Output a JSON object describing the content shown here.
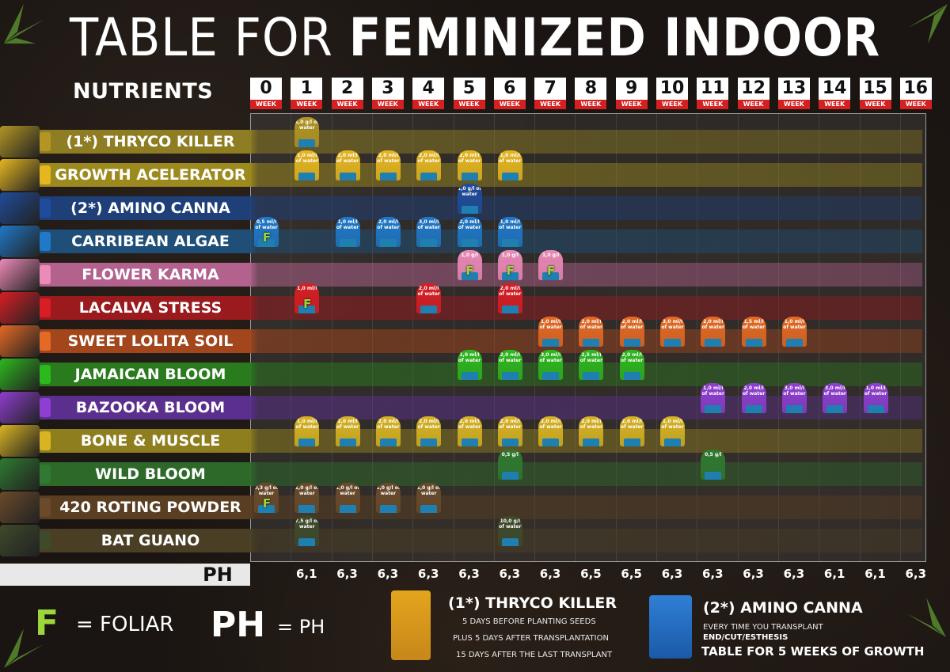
{
  "title": {
    "thin": "TABLE FOR ",
    "bold": "FEMINIZED INDOOR"
  },
  "nutrients_header": "NUTRIENTS",
  "week_label": "WEEK",
  "weeks": [
    "0",
    "1",
    "2",
    "3",
    "4",
    "5",
    "6",
    "7",
    "8",
    "9",
    "10",
    "11",
    "12",
    "13",
    "14",
    "15",
    "16"
  ],
  "nutrients": [
    {
      "label": "(1*) THRYCO KILLER",
      "color": "#8e7d22",
      "bottle": "#b29524",
      "doses": [
        {
          "w": 1,
          "t": "1,0 g/l of water"
        }
      ]
    },
    {
      "label": "GROWTH ACELERATOR",
      "color": "#9c8a1e",
      "bottle": "#e6b620",
      "doses": [
        {
          "w": 1,
          "t": "1,0 ml/l of water"
        },
        {
          "w": 2,
          "t": "2,0 ml/l of water"
        },
        {
          "w": 3,
          "t": "2,0 ml/l of water"
        },
        {
          "w": 4,
          "t": "2,0 ml/l of water"
        },
        {
          "w": 5,
          "t": "2,0 ml/l of water"
        },
        {
          "w": 6,
          "t": "1,0 ml/l of water"
        }
      ]
    },
    {
      "label": "(2*) AMINO CANNA",
      "color": "#1e3f78",
      "bottle": "#1f4c9a",
      "doses": [
        {
          "w": 5,
          "t": "1,0 g/l of water"
        }
      ]
    },
    {
      "label": "CARRIBEAN ALGAE",
      "color": "#1f4f78",
      "bottle": "#1f78c8",
      "doses": [
        {
          "w": 0,
          "t": "0,5 ml/l of water",
          "f": "F"
        },
        {
          "w": 2,
          "t": "1,0 ml/l of water"
        },
        {
          "w": 3,
          "t": "2,0 ml/l of water"
        },
        {
          "w": 4,
          "t": "3,0 ml/l of water"
        },
        {
          "w": 5,
          "t": "2,0 ml/l of water"
        },
        {
          "w": 6,
          "t": "1,0 ml/l of water"
        }
      ]
    },
    {
      "label": "FLOWER KARMA",
      "color": "#b3628e",
      "bottle": "#ec8ab8",
      "doses": [
        {
          "w": 5,
          "t": "1,0 g/l",
          "f": "F"
        },
        {
          "w": 6,
          "t": "1,0 g/l",
          "f": "F"
        },
        {
          "w": 7,
          "t": "1,0 g/l",
          "f": "F"
        }
      ]
    },
    {
      "label": "LACALVA STRESS",
      "color": "#9a1a1e",
      "bottle": "#d81e24",
      "doses": [
        {
          "w": 1,
          "t": "1,0 ml/l",
          "f": "F"
        },
        {
          "w": 4,
          "t": "2,0 ml/l of water"
        },
        {
          "w": 6,
          "t": "2,0 ml/l of water"
        }
      ]
    },
    {
      "label": "SWEET LOLITA SOIL",
      "color": "#a3461c",
      "bottle": "#e36a24",
      "doses": [
        {
          "w": 7,
          "t": "1,0 ml/l of water"
        },
        {
          "w": 8,
          "t": "2,0 ml/l of water"
        },
        {
          "w": 9,
          "t": "2,0 ml/l of water"
        },
        {
          "w": 10,
          "t": "3,0 ml/l of water"
        },
        {
          "w": 11,
          "t": "2,0 ml/l of water"
        },
        {
          "w": 12,
          "t": "1,5 ml/l of water"
        },
        {
          "w": 13,
          "t": "1,0 ml/l of water"
        }
      ]
    },
    {
      "label": "JAMAICAN BLOOM",
      "color": "#2a7a1e",
      "bottle": "#2db81e",
      "doses": [
        {
          "w": 5,
          "t": "1,0 ml/l of water"
        },
        {
          "w": 6,
          "t": "2,0 ml/l of water"
        },
        {
          "w": 7,
          "t": "3,0 ml/l of water"
        },
        {
          "w": 8,
          "t": "2,5 ml/l of water"
        },
        {
          "w": 9,
          "t": "2,0 ml/l of water"
        }
      ]
    },
    {
      "label": "BAZOOKA BLOOM",
      "color": "#5a2f8e",
      "bottle": "#8e3ed0",
      "doses": [
        {
          "w": 11,
          "t": "1,0 ml/l of water"
        },
        {
          "w": 12,
          "t": "2,0 ml/l of water"
        },
        {
          "w": 13,
          "t": "3,0 ml/l of water"
        },
        {
          "w": 14,
          "t": "3,0 ml/l of water"
        },
        {
          "w": 15,
          "t": "1,0 ml/l of water"
        }
      ]
    },
    {
      "label": "BONE & MUSCLE",
      "color": "#8e7e1e",
      "bottle": "#d8b322",
      "doses": [
        {
          "w": 1,
          "t": "1,0 ml/l of water"
        },
        {
          "w": 2,
          "t": "2,0 ml/l of water"
        },
        {
          "w": 3,
          "t": "2,0 ml/l of water"
        },
        {
          "w": 4,
          "t": "2,0 ml/l of water"
        },
        {
          "w": 5,
          "t": "2,0 ml/l of water"
        },
        {
          "w": 6,
          "t": "2,0 ml/l of water"
        },
        {
          "w": 7,
          "t": "2,0 ml/l of water"
        },
        {
          "w": 8,
          "t": "2,0 ml/l of water"
        },
        {
          "w": 9,
          "t": "2,0 ml/l of water"
        },
        {
          "w": 10,
          "t": "1,0 ml/l of water"
        }
      ]
    },
    {
      "label": "WILD BLOOM",
      "color": "#2d6a2a",
      "bottle": "#2f7a30",
      "doses": [
        {
          "w": 6,
          "t": "0,5 g/l"
        },
        {
          "w": 11,
          "t": "0,5 g/l"
        }
      ]
    },
    {
      "label": "420 ROTING POWDER",
      "color": "#5a3e22",
      "bottle": "#6a4a2a",
      "doses": [
        {
          "w": 0,
          "t": "0,3 g/l of water",
          "f": "F"
        },
        {
          "w": 1,
          "t": "1,0 g/l of water"
        },
        {
          "w": 2,
          "t": "1,0 g/l of water"
        },
        {
          "w": 3,
          "t": "1,0 g/l of water"
        },
        {
          "w": 4,
          "t": "1,0 g/l of water"
        }
      ]
    },
    {
      "label": "BAT GUANO",
      "color": "#4a3e24",
      "bottle": "#3e4a2a",
      "doses": [
        {
          "w": 1,
          "t": "7,5 g/l of water"
        },
        {
          "w": 6,
          "t": "10,0 g/l of water"
        }
      ]
    }
  ],
  "ph": {
    "label": "PH",
    "values": [
      "",
      "6,1",
      "6,3",
      "6,3",
      "6,3",
      "6,3",
      "6,3",
      "6,3",
      "6,5",
      "6,5",
      "6,3",
      "6,3",
      "6,3",
      "6,3",
      "6,1",
      "6,1",
      "6,3"
    ]
  },
  "legend": {
    "f_symbol": "F",
    "f_text": "= FOLIAR",
    "ph_symbol": "PH",
    "ph_text": "= PH"
  },
  "note1": {
    "title": "(1*) THRYCO KILLER",
    "lines": [
      "5 DAYS BEFORE PLANTING SEEDS",
      "PLUS 5 DAYS AFTER TRANSPLANTATION",
      "15 DAYS AFTER THE LAST TRANSPLANT"
    ]
  },
  "note2": {
    "title": "(2*) AMINO CANNA",
    "line1": "EVERY TIME YOU TRANSPLANT",
    "line2": "END/CUT/ESTHESIS",
    "line3": "TABLE FOR 5 WEEKS OF GROWTH"
  }
}
